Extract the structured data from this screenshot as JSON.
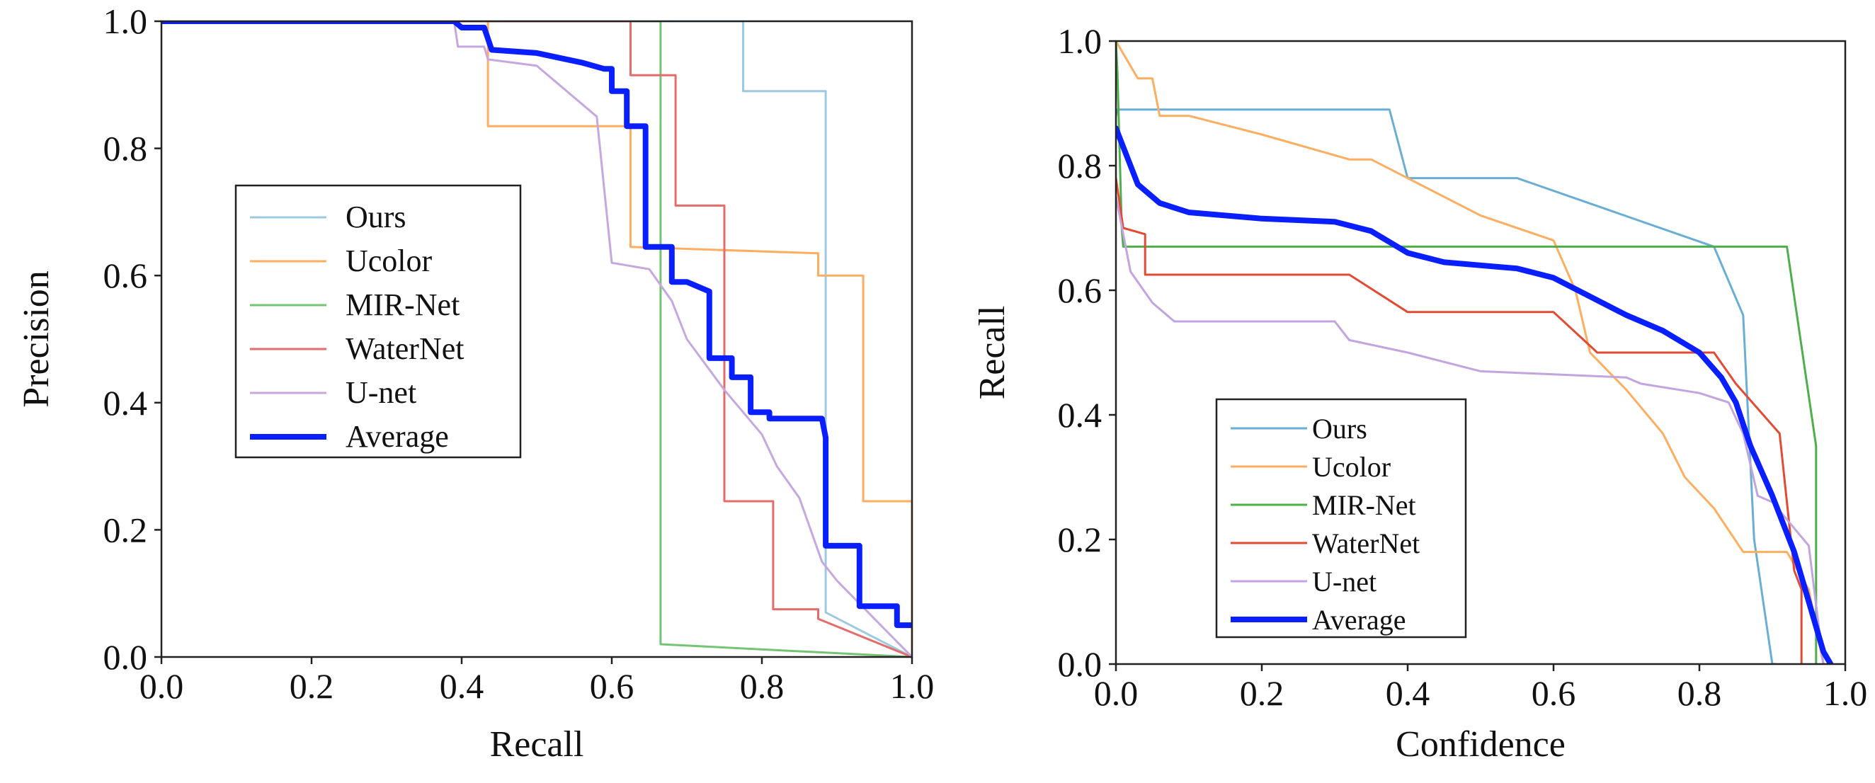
{
  "chart_data": [
    {
      "type": "line",
      "xlabel": "Recall",
      "ylabel": "Precision",
      "xlim": [
        0,
        1
      ],
      "ylim": [
        0,
        1
      ],
      "xticks": [
        "0.0",
        "0.2",
        "0.4",
        "0.6",
        "0.8",
        "1.0"
      ],
      "yticks": [
        "0.0",
        "0.2",
        "0.4",
        "0.6",
        "0.8",
        "1.0"
      ],
      "grid": false,
      "legend_position": "center-left",
      "series": [
        {
          "name": "Ours",
          "color": "#9ecae1",
          "width": 3,
          "x": [
            0,
            0.775,
            0.775,
            0.885,
            0.885,
            1.0
          ],
          "y": [
            1.0,
            1.0,
            0.89,
            0.89,
            0.07,
            0.0
          ]
        },
        {
          "name": "Ucolor",
          "color": "#fdae61",
          "width": 3,
          "x": [
            0,
            0.435,
            0.435,
            0.625,
            0.625,
            0.875,
            0.875,
            0.935,
            0.935,
            1.0,
            1.0
          ],
          "y": [
            1.0,
            1.0,
            0.835,
            0.835,
            0.645,
            0.635,
            0.6,
            0.6,
            0.245,
            0.245,
            0.0
          ]
        },
        {
          "name": "MIR-Net",
          "color": "#74c476",
          "width": 3,
          "x": [
            0,
            0.665,
            0.665,
            1.0
          ],
          "y": [
            1.0,
            1.0,
            0.02,
            0.0
          ]
        },
        {
          "name": "WaterNet",
          "color": "#e66b6b",
          "width": 3,
          "x": [
            0,
            0.625,
            0.625,
            0.685,
            0.685,
            0.71,
            0.71,
            0.75,
            0.75,
            0.815,
            0.815,
            0.875,
            0.875,
            1.0
          ],
          "y": [
            1.0,
            1.0,
            0.915,
            0.915,
            0.71,
            0.71,
            0.71,
            0.71,
            0.245,
            0.245,
            0.075,
            0.075,
            0.06,
            0.0
          ]
        },
        {
          "name": "U-net",
          "color": "#c5a8e0",
          "width": 3,
          "x": [
            0,
            0.39,
            0.395,
            0.43,
            0.435,
            0.5,
            0.52,
            0.58,
            0.6,
            0.65,
            0.68,
            0.7,
            0.75,
            0.8,
            0.82,
            0.85,
            0.88,
            0.9,
            1.0
          ],
          "y": [
            1.0,
            1.0,
            0.96,
            0.96,
            0.94,
            0.93,
            0.91,
            0.85,
            0.62,
            0.61,
            0.56,
            0.5,
            0.42,
            0.35,
            0.3,
            0.25,
            0.15,
            0.12,
            0.0
          ]
        },
        {
          "name": "Average",
          "color": "#0a1fff",
          "width": 8,
          "x": [
            0,
            0.39,
            0.4,
            0.43,
            0.44,
            0.5,
            0.52,
            0.56,
            0.59,
            0.6,
            0.6,
            0.62,
            0.62,
            0.645,
            0.645,
            0.68,
            0.68,
            0.7,
            0.73,
            0.73,
            0.76,
            0.76,
            0.785,
            0.785,
            0.81,
            0.81,
            0.88,
            0.885,
            0.885,
            0.93,
            0.93,
            0.98,
            0.98,
            1.0
          ],
          "y": [
            1.0,
            1.0,
            0.99,
            0.99,
            0.955,
            0.95,
            0.945,
            0.935,
            0.925,
            0.925,
            0.89,
            0.89,
            0.835,
            0.835,
            0.645,
            0.645,
            0.59,
            0.59,
            0.575,
            0.47,
            0.47,
            0.44,
            0.44,
            0.385,
            0.385,
            0.375,
            0.375,
            0.345,
            0.175,
            0.175,
            0.08,
            0.08,
            0.05,
            0.05
          ]
        }
      ]
    },
    {
      "type": "line",
      "xlabel": "Confidence",
      "ylabel": "Recall",
      "xlim": [
        0,
        1
      ],
      "ylim": [
        0,
        1
      ],
      "xticks": [
        "0.0",
        "0.2",
        "0.4",
        "0.6",
        "0.8",
        "1.0"
      ],
      "yticks": [
        "0.0",
        "0.2",
        "0.4",
        "0.6",
        "0.8",
        "1.0"
      ],
      "grid": false,
      "legend_position": "lower-left",
      "series": [
        {
          "name": "Ours",
          "color": "#6aaed6",
          "width": 3,
          "x": [
            0,
            0.002,
            0.375,
            0.4,
            0.55,
            0.82,
            0.86,
            0.875,
            0.9,
            0.905
          ],
          "y": [
            0.88,
            0.89,
            0.89,
            0.78,
            0.78,
            0.67,
            0.56,
            0.2,
            0.0,
            0.0
          ]
        },
        {
          "name": "Ucolor",
          "color": "#fdae61",
          "width": 3,
          "x": [
            0,
            0.03,
            0.05,
            0.06,
            0.1,
            0.2,
            0.32,
            0.35,
            0.4,
            0.5,
            0.6,
            0.63,
            0.65,
            0.7,
            0.75,
            0.78,
            0.82,
            0.86,
            0.92,
            0.95,
            0.97
          ],
          "y": [
            1.0,
            0.94,
            0.94,
            0.88,
            0.88,
            0.85,
            0.81,
            0.81,
            0.78,
            0.72,
            0.68,
            0.6,
            0.5,
            0.44,
            0.37,
            0.3,
            0.25,
            0.18,
            0.18,
            0.12,
            0.0
          ]
        },
        {
          "name": "MIR-Net",
          "color": "#4daf4a",
          "width": 3,
          "x": [
            0,
            0.002,
            0.008,
            0.01,
            0.92,
            0.96,
            0.96
          ],
          "y": [
            1.0,
            0.95,
            0.7,
            0.67,
            0.67,
            0.35,
            0.0
          ]
        },
        {
          "name": "WaterNet",
          "color": "#e34a33",
          "width": 3,
          "x": [
            0,
            0.01,
            0.04,
            0.04,
            0.32,
            0.4,
            0.6,
            0.66,
            0.82,
            0.85,
            0.91,
            0.93,
            0.94,
            0.94
          ],
          "y": [
            0.78,
            0.7,
            0.69,
            0.625,
            0.625,
            0.565,
            0.565,
            0.5,
            0.5,
            0.45,
            0.37,
            0.15,
            0.12,
            0.0
          ]
        },
        {
          "name": "U-net",
          "color": "#c2a5e0",
          "width": 3,
          "x": [
            0,
            0.02,
            0.05,
            0.08,
            0.1,
            0.3,
            0.32,
            0.4,
            0.5,
            0.7,
            0.72,
            0.8,
            0.84,
            0.86,
            0.88,
            0.9,
            0.95,
            0.97
          ],
          "y": [
            0.75,
            0.63,
            0.58,
            0.55,
            0.55,
            0.55,
            0.52,
            0.5,
            0.47,
            0.46,
            0.45,
            0.435,
            0.42,
            0.37,
            0.27,
            0.26,
            0.19,
            0.0
          ]
        },
        {
          "name": "Average",
          "color": "#0a1fff",
          "width": 8,
          "x": [
            0,
            0.01,
            0.03,
            0.06,
            0.1,
            0.2,
            0.3,
            0.35,
            0.4,
            0.45,
            0.5,
            0.55,
            0.6,
            0.65,
            0.7,
            0.75,
            0.8,
            0.83,
            0.85,
            0.87,
            0.9,
            0.93,
            0.95,
            0.97,
            0.98
          ],
          "y": [
            0.86,
            0.83,
            0.77,
            0.74,
            0.725,
            0.715,
            0.71,
            0.695,
            0.66,
            0.645,
            0.64,
            0.635,
            0.62,
            0.59,
            0.56,
            0.535,
            0.5,
            0.46,
            0.42,
            0.35,
            0.27,
            0.18,
            0.1,
            0.02,
            0.0
          ]
        }
      ]
    }
  ]
}
